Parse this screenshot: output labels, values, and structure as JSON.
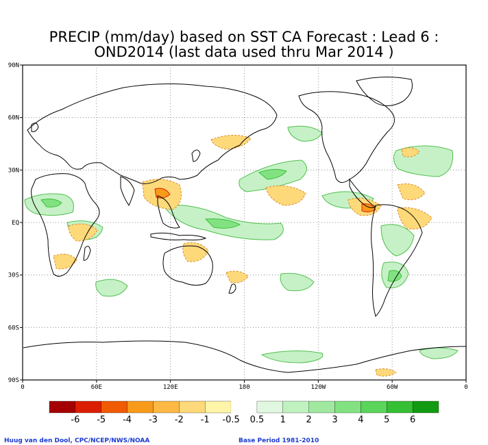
{
  "title_line1": "PRECIP (mm/day) based on SST CA Forecast : Lead 6 :",
  "title_line2": "OND2014 (last data used thru Mar 2014 )",
  "lat_labels": [
    "90N",
    "60N",
    "30N",
    "EQ",
    "30S",
    "60S",
    "90S"
  ],
  "lon_labels": [
    "0",
    "60E",
    "120E",
    "180",
    "120W",
    "60W",
    "0"
  ],
  "colorbar": {
    "labels": [
      "-6",
      "-5",
      "-4",
      "-3",
      "-2",
      "-1",
      "-0.5",
      "0.5",
      "1",
      "2",
      "3",
      "4",
      "5",
      "6"
    ],
    "colors": [
      "#a50000",
      "#dc1e00",
      "#f05a00",
      "#f89a1a",
      "#fdb944",
      "#fed97a",
      "#fff5a8",
      "#ffffff",
      "#e0f8e0",
      "#bff2bf",
      "#a0e8a0",
      "#82e282",
      "#5ad45a",
      "#35bf35",
      "#129b12"
    ]
  },
  "footer": {
    "credit": "Huug van den Dool, CPC/NCEP/NWS/NOAA",
    "base_period": "Base Period 1981-2010"
  }
}
